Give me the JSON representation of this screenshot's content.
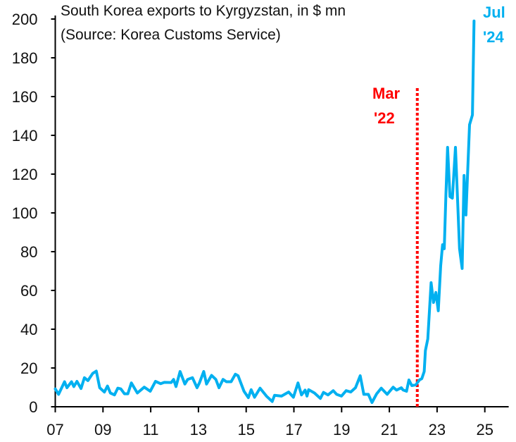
{
  "chart_data": {
    "type": "line",
    "title_lines": [
      "South Korea exports to Kyrgyzstan, in $ mn",
      "(Source: Korea Customs Service)"
    ],
    "xlabel": "",
    "ylabel": "",
    "xlim": [
      2007,
      2026
    ],
    "ylim": [
      0,
      200
    ],
    "grid": false,
    "x_ticks": [
      2007,
      2009,
      2011,
      2013,
      2015,
      2017,
      2019,
      2021,
      2023,
      2025
    ],
    "x_tick_labels": [
      "07",
      "09",
      "11",
      "13",
      "15",
      "17",
      "19",
      "21",
      "23",
      "25"
    ],
    "y_ticks": [
      0,
      20,
      40,
      60,
      80,
      100,
      120,
      140,
      160,
      180,
      200
    ],
    "y_tick_labels": [
      "0",
      "20",
      "40",
      "60",
      "80",
      "100",
      "120",
      "140",
      "160",
      "180",
      "200"
    ],
    "series": [
      {
        "color": "#00B0F0",
        "x": [
          2007.0,
          2007.14,
          2007.39,
          2007.49,
          2007.68,
          2007.78,
          2007.91,
          2008.08,
          2008.22,
          2008.37,
          2008.57,
          2008.72,
          2008.86,
          2009.06,
          2009.19,
          2009.31,
          2009.48,
          2009.62,
          2009.75,
          2009.9,
          2010.04,
          2010.19,
          2010.44,
          2010.73,
          2010.98,
          2011.2,
          2011.42,
          2011.57,
          2011.86,
          2011.96,
          2012.06,
          2012.23,
          2012.43,
          2012.55,
          2012.75,
          2012.94,
          2013.04,
          2013.22,
          2013.34,
          2013.55,
          2013.73,
          2013.86,
          2014.03,
          2014.17,
          2014.37,
          2014.55,
          2014.66,
          2014.91,
          2015.09,
          2015.21,
          2015.35,
          2015.58,
          2015.85,
          2016.09,
          2016.19,
          2016.48,
          2016.78,
          2016.98,
          2017.17,
          2017.32,
          2017.47,
          2017.55,
          2017.62,
          2017.86,
          2018.11,
          2018.24,
          2018.43,
          2018.65,
          2018.79,
          2018.99,
          2019.19,
          2019.38,
          2019.58,
          2019.78,
          2019.93,
          2020.12,
          2020.27,
          2020.47,
          2020.66,
          2020.91,
          2021.16,
          2021.3,
          2021.5,
          2021.57,
          2021.72,
          2021.82,
          2021.94,
          2022.11,
          2022.26,
          2022.36,
          2022.46,
          2022.51,
          2022.61,
          2022.75,
          2022.85,
          2022.95,
          2023.05,
          2023.15,
          2023.23,
          2023.3,
          2023.37,
          2023.44,
          2023.54,
          2023.64,
          2023.77,
          2023.94,
          2024.05,
          2024.13,
          2024.21,
          2024.36,
          2024.48,
          2024.55
        ],
        "values": [
          9.2,
          6.4,
          12.9,
          9.8,
          12.9,
          10.4,
          13.1,
          9.4,
          15,
          13.5,
          17.2,
          18.4,
          9.8,
          7.6,
          10.7,
          7.1,
          6.1,
          9.6,
          9.2,
          6.7,
          6.7,
          12.3,
          7.1,
          10.1,
          8,
          13.1,
          11.9,
          12.6,
          12.5,
          14.1,
          10.4,
          18.2,
          11.7,
          14.1,
          15,
          9.8,
          12.3,
          18.2,
          11.7,
          16.2,
          14.1,
          9.8,
          14.1,
          12.9,
          12.9,
          16.8,
          16,
          8,
          4.7,
          8.8,
          4.9,
          9.6,
          5.5,
          2.7,
          5.9,
          5.5,
          7.6,
          4.9,
          12.3,
          6.1,
          8.6,
          5.5,
          8.8,
          7.1,
          4.3,
          7.4,
          6.1,
          8.3,
          6.4,
          5.5,
          8.3,
          7.6,
          9.8,
          16,
          6.4,
          6.4,
          2.2,
          6.7,
          9.6,
          6.4,
          10.1,
          8.6,
          9.8,
          8.7,
          8,
          13.8,
          10.9,
          11.3,
          13.8,
          14.5,
          18.2,
          29,
          35,
          64,
          53.8,
          59,
          49.5,
          72.7,
          83.6,
          81.5,
          109,
          133.8,
          108.4,
          107.6,
          133.8,
          81.5,
          71.3,
          119.3,
          98.9,
          145.5,
          150.5,
          199
        ]
      }
    ],
    "annotations": [
      {
        "lines": [
          "Mar",
          "'22"
        ],
        "x": 2022.17,
        "color": "#FF0000",
        "style": "dotted-vertical-line"
      },
      {
        "lines": [
          "Jul",
          "'24"
        ],
        "x": 2024.55,
        "color": "#00B0F0"
      }
    ]
  }
}
